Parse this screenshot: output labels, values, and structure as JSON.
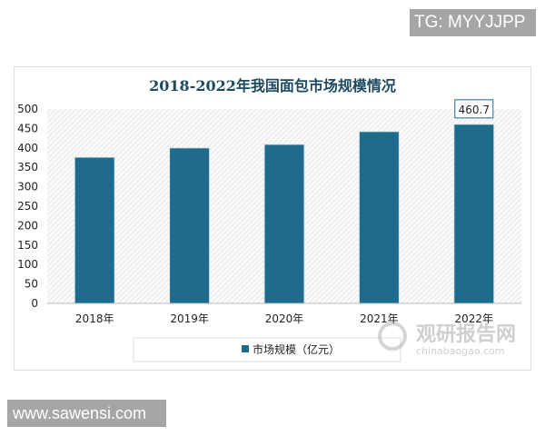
{
  "watermarks": {
    "tg": "TG: MYYJJPP",
    "site": "www.sawensi.com",
    "logo_cn": "观研报告网",
    "logo_en": "chinabaogao.com"
  },
  "colors": {
    "bar": "#1f6b8c",
    "title": "#1d4a5e"
  },
  "chart_data": {
    "type": "bar",
    "title": "2018-2022年我国面包市场规模情况",
    "categories": [
      "2018年",
      "2019年",
      "2020年",
      "2021年",
      "2022年"
    ],
    "series": [
      {
        "name": "市场规模（亿元）",
        "values": [
          376,
          400,
          409,
          442,
          460.7
        ]
      }
    ],
    "data_labels": [
      {
        "category": "2022年",
        "text": "460.7"
      }
    ],
    "ylim": [
      0,
      500
    ],
    "yticks": [
      0,
      50,
      100,
      150,
      200,
      250,
      300,
      350,
      400,
      450,
      500
    ],
    "xlabel": "",
    "ylabel": "",
    "legend": "bottom-center",
    "grid": false
  }
}
